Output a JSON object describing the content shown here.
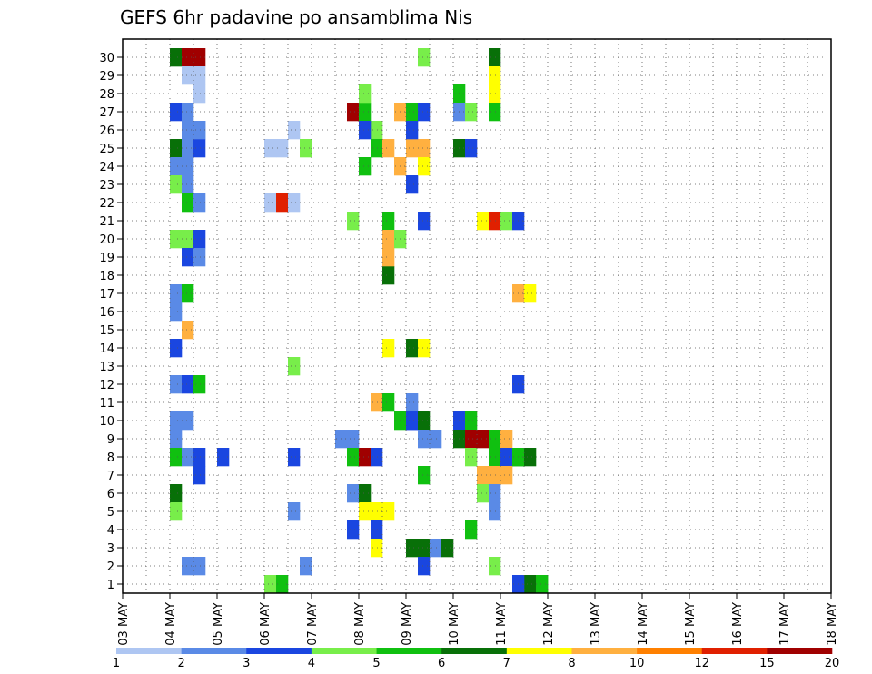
{
  "chart_data": {
    "type": "heatmap",
    "title": "GEFS 6hr padavine po ansamblima Nis",
    "x_tick_labels": [
      "03 MAY",
      "04 MAY",
      "05 MAY",
      "06 MAY",
      "07 MAY",
      "08 MAY",
      "09 MAY",
      "10 MAY",
      "11 MAY",
      "12 MAY",
      "13 MAY",
      "14 MAY",
      "15 MAY",
      "16 MAY",
      "17 MAY",
      "18 MAY"
    ],
    "y_tick_labels": [
      "1",
      "2",
      "3",
      "4",
      "5",
      "6",
      "7",
      "8",
      "9",
      "10",
      "11",
      "12",
      "13",
      "14",
      "15",
      "16",
      "17",
      "18",
      "19",
      "20",
      "21",
      "22",
      "23",
      "24",
      "25",
      "26",
      "27",
      "28",
      "29",
      "30"
    ],
    "members": 30,
    "steps_per_day": 4,
    "legend_labels": [
      "1",
      "2",
      "3",
      "4",
      "5",
      "6",
      "7",
      "8",
      "10",
      "12",
      "15",
      "20"
    ],
    "legend_colors": [
      "#aec6f2",
      "#5a8ae6",
      "#1a46e0",
      "#78ee4a",
      "#10c010",
      "#087008",
      "#ffff00",
      "#ffb040",
      "#ff8000",
      "#e02000",
      "#a00000"
    ],
    "grid": "dotted",
    "cells": [
      {
        "m": 29,
        "d": 0,
        "s": 4,
        "c": 6
      },
      {
        "m": 29,
        "d": 0,
        "s": 5,
        "c": 11
      },
      {
        "m": 29,
        "d": 0,
        "s": 6,
        "c": 11
      },
      {
        "m": 28,
        "d": 0,
        "s": 5,
        "c": 1
      },
      {
        "m": 28,
        "d": 0,
        "s": 6,
        "c": 1
      },
      {
        "m": 27,
        "d": 0,
        "s": 6,
        "c": 1
      },
      {
        "m": 26,
        "d": 0,
        "s": 4,
        "c": 3
      },
      {
        "m": 26,
        "d": 0,
        "s": 5,
        "c": 2
      },
      {
        "m": 25,
        "d": 0,
        "s": 5,
        "c": 2
      },
      {
        "m": 25,
        "d": 0,
        "s": 6,
        "c": 2
      },
      {
        "m": 24,
        "d": 0,
        "s": 4,
        "c": 6
      },
      {
        "m": 24,
        "d": 0,
        "s": 5,
        "c": 2
      },
      {
        "m": 24,
        "d": 0,
        "s": 6,
        "c": 3
      },
      {
        "m": 23,
        "d": 0,
        "s": 4,
        "c": 2
      },
      {
        "m": 23,
        "d": 0,
        "s": 5,
        "c": 2
      },
      {
        "m": 22,
        "d": 0,
        "s": 4,
        "c": 4
      },
      {
        "m": 22,
        "d": 0,
        "s": 5,
        "c": 2
      },
      {
        "m": 21,
        "d": 0,
        "s": 5,
        "c": 5
      },
      {
        "m": 21,
        "d": 0,
        "s": 6,
        "c": 2
      },
      {
        "m": 19,
        "d": 0,
        "s": 4,
        "c": 4
      },
      {
        "m": 19,
        "d": 0,
        "s": 5,
        "c": 4
      },
      {
        "m": 19,
        "d": 0,
        "s": 6,
        "c": 3
      },
      {
        "m": 18,
        "d": 0,
        "s": 5,
        "c": 3
      },
      {
        "m": 18,
        "d": 0,
        "s": 6,
        "c": 2
      },
      {
        "m": 16,
        "d": 0,
        "s": 4,
        "c": 2
      },
      {
        "m": 16,
        "d": 0,
        "s": 5,
        "c": 5
      },
      {
        "m": 15,
        "d": 0,
        "s": 4,
        "c": 2
      },
      {
        "m": 14,
        "d": 0,
        "s": 5,
        "c": 8
      },
      {
        "m": 13,
        "d": 0,
        "s": 4,
        "c": 3
      },
      {
        "m": 11,
        "d": 0,
        "s": 4,
        "c": 2
      },
      {
        "m": 11,
        "d": 0,
        "s": 5,
        "c": 3
      },
      {
        "m": 11,
        "d": 0,
        "s": 6,
        "c": 5
      },
      {
        "m": 9,
        "d": 0,
        "s": 4,
        "c": 2
      },
      {
        "m": 9,
        "d": 0,
        "s": 5,
        "c": 2
      },
      {
        "m": 8,
        "d": 0,
        "s": 4,
        "c": 2
      },
      {
        "m": 7,
        "d": 0,
        "s": 4,
        "c": 5
      },
      {
        "m": 7,
        "d": 0,
        "s": 5,
        "c": 2
      },
      {
        "m": 7,
        "d": 0,
        "s": 6,
        "c": 3
      },
      {
        "m": 6,
        "d": 0,
        "s": 6,
        "c": 3
      },
      {
        "m": 5,
        "d": 0,
        "s": 4,
        "c": 6
      },
      {
        "m": 4,
        "d": 0,
        "s": 4,
        "c": 4
      },
      {
        "m": 1,
        "d": 0,
        "s": 5,
        "c": 2
      },
      {
        "m": 1,
        "d": 0,
        "s": 6,
        "c": 2
      },
      {
        "m": 25,
        "d": 1,
        "s": 2,
        "c": 2
      },
      {
        "m": 7,
        "d": 1,
        "s": 4,
        "c": 3
      },
      {
        "m": 24,
        "d": 2,
        "s": 4,
        "c": 1
      },
      {
        "m": 24,
        "d": 2,
        "s": 5,
        "c": 1
      },
      {
        "m": 25,
        "d": 2,
        "s": 6,
        "c": 1
      },
      {
        "m": 24,
        "d": 2,
        "s": 7,
        "c": 4
      },
      {
        "m": 7,
        "d": 2,
        "s": 6,
        "c": 3
      },
      {
        "m": 4,
        "d": 2,
        "s": 6,
        "c": 2
      },
      {
        "m": 1,
        "d": 2,
        "s": 7,
        "c": 2
      },
      {
        "m": 21,
        "d": 3,
        "s": 0,
        "c": 1
      },
      {
        "m": 21,
        "d": 3,
        "s": 1,
        "c": 10
      },
      {
        "m": 21,
        "d": 3,
        "s": 2,
        "c": 1
      },
      {
        "m": 12,
        "d": 3,
        "s": 2,
        "c": 4
      },
      {
        "m": 0,
        "d": 3,
        "s": 0,
        "c": 4
      },
      {
        "m": 0,
        "d": 3,
        "s": 1,
        "c": 5
      },
      {
        "m": 26,
        "d": 4,
        "s": 3,
        "c": 11
      },
      {
        "m": 26,
        "d": 4,
        "s": 4,
        "c": 5
      },
      {
        "m": 27,
        "d": 4,
        "s": 4,
        "c": 4
      },
      {
        "m": 25,
        "d": 4,
        "s": 5,
        "c": 4
      },
      {
        "m": 24,
        "d": 4,
        "s": 5,
        "c": 5
      },
      {
        "m": 24,
        "d": 4,
        "s": 6,
        "c": 8
      },
      {
        "m": 23,
        "d": 4,
        "s": 4,
        "c": 5
      },
      {
        "m": 20,
        "d": 4,
        "s": 3,
        "c": 4
      },
      {
        "m": 20,
        "d": 4,
        "s": 6,
        "c": 5
      },
      {
        "m": 19,
        "d": 4,
        "s": 6,
        "c": 8
      },
      {
        "m": 19,
        "d": 4,
        "s": 7,
        "c": 4
      },
      {
        "m": 17,
        "d": 4,
        "s": 6,
        "c": 6
      },
      {
        "m": 13,
        "d": 4,
        "s": 6,
        "c": 7
      },
      {
        "m": 10,
        "d": 4,
        "s": 5,
        "c": 8
      },
      {
        "m": 10,
        "d": 4,
        "s": 6,
        "c": 5
      },
      {
        "m": 8,
        "d": 4,
        "s": 2,
        "c": 2
      },
      {
        "m": 8,
        "d": 4,
        "s": 3,
        "c": 2
      },
      {
        "m": 7,
        "d": 4,
        "s": 3,
        "c": 5
      },
      {
        "m": 7,
        "d": 4,
        "s": 4,
        "c": 11
      },
      {
        "m": 7,
        "d": 4,
        "s": 5,
        "c": 3
      },
      {
        "m": 5,
        "d": 4,
        "s": 3,
        "c": 2
      },
      {
        "m": 5,
        "d": 4,
        "s": 4,
        "c": 6
      },
      {
        "m": 4,
        "d": 4,
        "s": 4,
        "c": 7
      },
      {
        "m": 4,
        "d": 4,
        "s": 5,
        "c": 7
      },
      {
        "m": 4,
        "d": 4,
        "s": 6,
        "c": 7
      },
      {
        "m": 3,
        "d": 4,
        "s": 3,
        "c": 3
      },
      {
        "m": 3,
        "d": 4,
        "s": 5,
        "c": 3
      },
      {
        "m": 2,
        "d": 4,
        "s": 5,
        "c": 7
      },
      {
        "m": 26,
        "d": 5,
        "s": 3,
        "c": 8
      },
      {
        "m": 26,
        "d": 5,
        "s": 4,
        "c": 5
      },
      {
        "m": 25,
        "d": 5,
        "s": 0,
        "c": 3
      },
      {
        "m": 23,
        "d": 5,
        "s": 3,
        "c": 8
      },
      {
        "m": 22,
        "d": 5,
        "s": 4,
        "c": 3
      },
      {
        "m": 18,
        "d": 5,
        "s": 2,
        "c": 8
      },
      {
        "m": 9,
        "d": 5,
        "s": 3,
        "c": 5
      },
      {
        "m": 9,
        "d": 5,
        "s": 4,
        "c": 3
      },
      {
        "m": 2,
        "d": 5,
        "s": 4,
        "c": 6
      },
      {
        "m": 2,
        "d": 5,
        "s": 5,
        "c": 6
      },
      {
        "m": 2,
        "d": 5,
        "s": 6,
        "c": 2
      },
      {
        "m": 2,
        "d": 5,
        "s": 7,
        "c": 6
      },
      {
        "m": 24,
        "d": 6,
        "s": 0,
        "c": 8
      },
      {
        "m": 24,
        "d": 6,
        "s": 1,
        "c": 8
      },
      {
        "m": 23,
        "d": 6,
        "s": 1,
        "c": 7
      },
      {
        "m": 26,
        "d": 6,
        "s": 1,
        "c": 3
      },
      {
        "m": 25,
        "d": 6,
        "s": 0,
        "c": 3
      },
      {
        "m": 29,
        "d": 6,
        "s": 1,
        "c": 4
      },
      {
        "m": 20,
        "d": 6,
        "s": 1,
        "c": 3
      },
      {
        "m": 13,
        "d": 6,
        "s": 0,
        "c": 6
      },
      {
        "m": 13,
        "d": 6,
        "s": 1,
        "c": 7
      },
      {
        "m": 10,
        "d": 6,
        "s": 0,
        "c": 2
      },
      {
        "m": 9,
        "d": 6,
        "s": 0,
        "c": 3
      },
      {
        "m": 9,
        "d": 6,
        "s": 1,
        "c": 6
      },
      {
        "m": 8,
        "d": 6,
        "s": 1,
        "c": 2
      },
      {
        "m": 8,
        "d": 6,
        "s": 2,
        "c": 2
      },
      {
        "m": 6,
        "d": 6,
        "s": 1,
        "c": 5
      },
      {
        "m": 1,
        "d": 6,
        "s": 1,
        "c": 3
      },
      {
        "m": 24,
        "d": 7,
        "s": 0,
        "c": 6
      },
      {
        "m": 24,
        "d": 7,
        "s": 1,
        "c": 3
      },
      {
        "m": 27,
        "d": 7,
        "s": 0,
        "c": 5
      },
      {
        "m": 26,
        "d": 7,
        "s": 0,
        "c": 2
      },
      {
        "m": 26,
        "d": 7,
        "s": 1,
        "c": 4
      },
      {
        "m": 9,
        "d": 7,
        "s": 0,
        "c": 3
      },
      {
        "m": 9,
        "d": 7,
        "s": 1,
        "c": 5
      },
      {
        "m": 8,
        "d": 7,
        "s": 0,
        "c": 6
      },
      {
        "m": 8,
        "d": 7,
        "s": 1,
        "c": 11
      },
      {
        "m": 8,
        "d": 7,
        "s": 2,
        "c": 11
      },
      {
        "m": 7,
        "d": 7,
        "s": 1,
        "c": 4
      },
      {
        "m": 3,
        "d": 7,
        "s": 1,
        "c": 5
      },
      {
        "m": 29,
        "d": 7,
        "s": 3,
        "c": 6
      },
      {
        "m": 28,
        "d": 7,
        "s": 3,
        "c": 7
      },
      {
        "m": 27,
        "d": 7,
        "s": 3,
        "c": 7
      },
      {
        "m": 26,
        "d": 7,
        "s": 3,
        "c": 5
      },
      {
        "m": 20,
        "d": 7,
        "s": 2,
        "c": 7
      },
      {
        "m": 20,
        "d": 7,
        "s": 3,
        "c": 10
      },
      {
        "m": 20,
        "d": 7,
        "s": 4,
        "c": 4
      },
      {
        "m": 20,
        "d": 7,
        "s": 5,
        "c": 3
      },
      {
        "m": 8,
        "d": 7,
        "s": 3,
        "c": 5
      },
      {
        "m": 8,
        "d": 7,
        "s": 4,
        "c": 8
      },
      {
        "m": 7,
        "d": 7,
        "s": 3,
        "c": 5
      },
      {
        "m": 7,
        "d": 7,
        "s": 4,
        "c": 3
      },
      {
        "m": 7,
        "d": 7,
        "s": 5,
        "c": 6
      },
      {
        "m": 6,
        "d": 7,
        "s": 2,
        "c": 8
      },
      {
        "m": 6,
        "d": 7,
        "s": 3,
        "c": 8
      },
      {
        "m": 6,
        "d": 7,
        "s": 4,
        "c": 8
      },
      {
        "m": 5,
        "d": 7,
        "s": 2,
        "c": 4
      },
      {
        "m": 5,
        "d": 7,
        "s": 3,
        "c": 2
      },
      {
        "m": 4,
        "d": 7,
        "s": 3,
        "c": 2
      },
      {
        "m": 1,
        "d": 7,
        "s": 3,
        "c": 4
      },
      {
        "m": 0,
        "d": 7,
        "s": 6,
        "c": 6
      },
      {
        "m": 0,
        "d": 7,
        "s": 7,
        "c": 5
      },
      {
        "m": 16,
        "d": 8,
        "s": 1,
        "c": 8
      },
      {
        "m": 16,
        "d": 8,
        "s": 2,
        "c": 7
      },
      {
        "m": 7,
        "d": 8,
        "s": 1,
        "c": 5
      },
      {
        "m": 7,
        "d": 8,
        "s": 2,
        "c": 6
      },
      {
        "m": 11,
        "d": 8,
        "s": 1,
        "c": 3
      },
      {
        "m": 0,
        "d": 8,
        "s": 1,
        "c": 3
      },
      {
        "m": 0,
        "d": 8,
        "s": 3,
        "c": 5
      }
    ]
  }
}
